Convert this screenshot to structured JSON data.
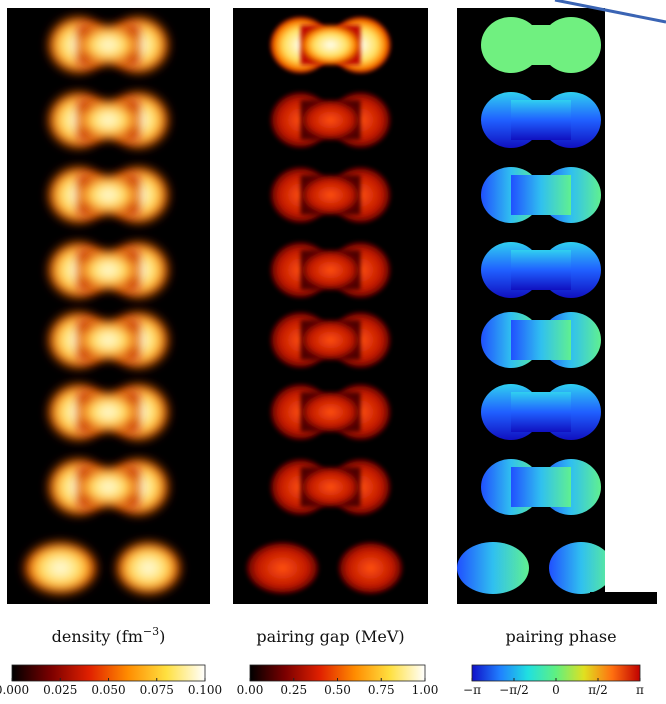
{
  "panels": [
    {
      "label": [
        "density (fm",
        "−3",
        ")"
      ],
      "colorbar": {
        "range": [
          0,
          0.1
        ],
        "colors": [
          "#000000",
          "#7a0000",
          "#e02000",
          "#ff8c00",
          "#ffe040",
          "#ffffff"
        ],
        "ticks": [
          {
            "value": 0,
            "label": "0.000"
          },
          {
            "value": 0.025,
            "label": "0.025"
          },
          {
            "value": 0.05,
            "label": "0.050"
          },
          {
            "value": 0.075,
            "label": "0.075"
          },
          {
            "value": 0.1,
            "label": "0.100"
          }
        ]
      }
    },
    {
      "label": [
        "pairing gap (MeV)"
      ],
      "colorbar": {
        "range": [
          0,
          1
        ],
        "colors": [
          "#000000",
          "#7a0000",
          "#e02000",
          "#ff8c00",
          "#ffe040",
          "#ffffff"
        ],
        "ticks": [
          {
            "value": 0,
            "label": "0.00"
          },
          {
            "value": 0.25,
            "label": "0.25"
          },
          {
            "value": 0.5,
            "label": "0.50"
          },
          {
            "value": 0.75,
            "label": "0.75"
          },
          {
            "value": 1,
            "label": "1.00"
          }
        ]
      }
    },
    {
      "label": [
        "pairing phase"
      ],
      "colorbar": {
        "range": [
          -3.14159,
          3.14159
        ],
        "colors": [
          "#1010c8",
          "#2080ff",
          "#20e0e0",
          "#60f080",
          "#e0e020",
          "#ff7010",
          "#c00000"
        ],
        "ticks": [
          {
            "value": -3.14159,
            "label": "−π"
          },
          {
            "value": -1.5708,
            "label": "−π/2"
          },
          {
            "value": 0,
            "label": "0"
          },
          {
            "value": 1.5708,
            "label": "π/2"
          },
          {
            "value": 3.14159,
            "label": "π"
          }
        ]
      }
    }
  ]
}
